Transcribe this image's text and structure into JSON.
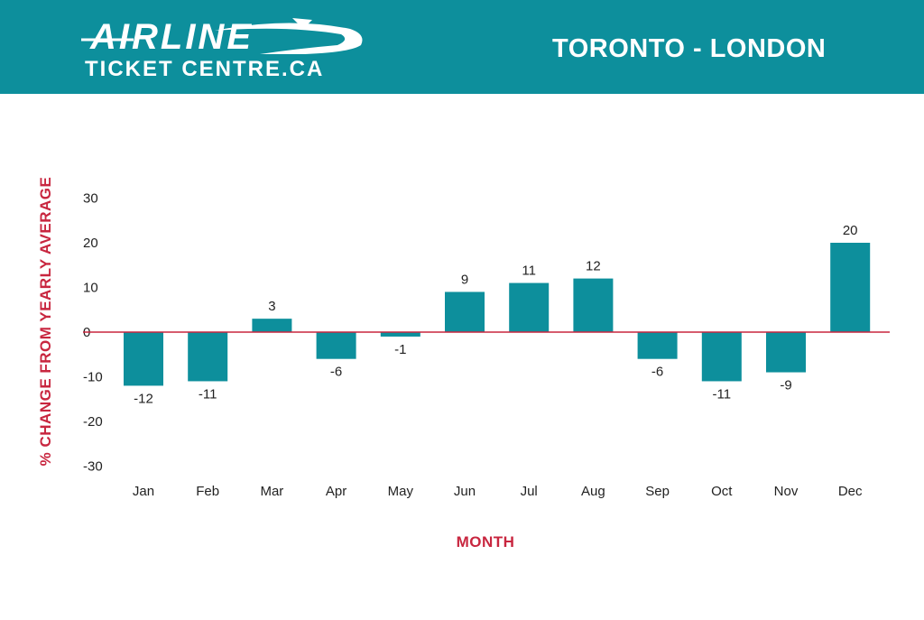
{
  "header": {
    "brand_line1": "AIRLINE",
    "brand_line2": "TICKET CENTRE.CA",
    "route": "TORONTO - LONDON",
    "background_color": "#0d8f9c"
  },
  "chart_data": {
    "type": "bar",
    "categories": [
      "Jan",
      "Feb",
      "Mar",
      "Apr",
      "May",
      "Jun",
      "Jul",
      "Aug",
      "Sep",
      "Oct",
      "Nov",
      "Dec"
    ],
    "values": [
      -12,
      -11,
      3,
      -6,
      -1,
      9,
      11,
      12,
      -6,
      -11,
      -9,
      20
    ],
    "data_labels": [
      "-12",
      "-11",
      "3",
      "-6",
      "-1",
      "9",
      "11",
      "12",
      "-6",
      "-11",
      "-9",
      "20"
    ],
    "yticks": [
      30,
      20,
      10,
      0,
      -10,
      -20,
      -30
    ],
    "ylim": [
      -30,
      30
    ],
    "xlabel": "MONTH",
    "ylabel": "% CHANGE FROM YEARLY AVERAGE",
    "grid": false,
    "legend": "none",
    "bar_color": "#0d8f9c",
    "zero_line_color": "#c8263f",
    "axis_title_color": "#c8263f"
  }
}
